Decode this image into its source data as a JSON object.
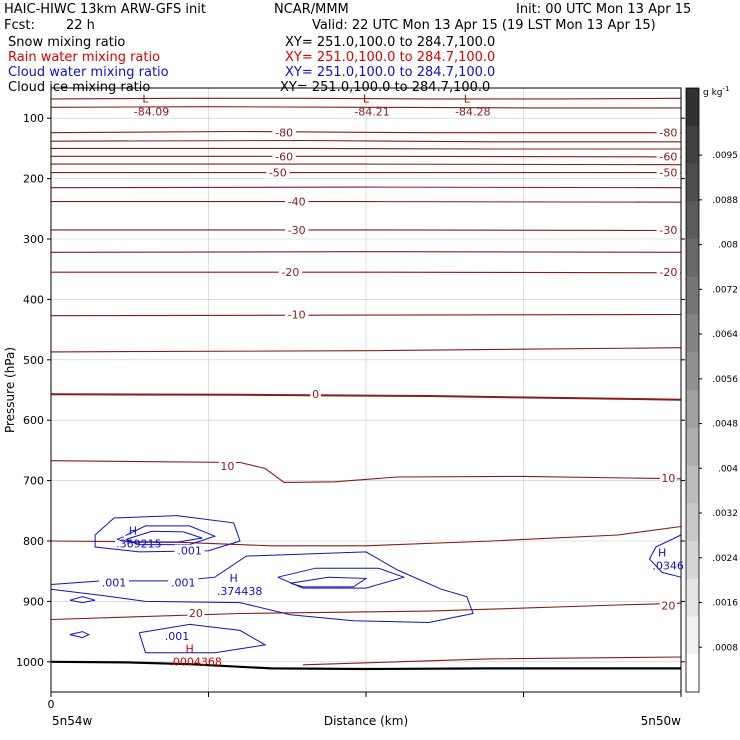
{
  "header": {
    "model": "HAIC-HIWC 13km ARW-GFS init",
    "org": "NCAR/MMM",
    "init": "Init: 00 UTC Mon 13 Apr 15",
    "fcst_label": "Fcst:",
    "fcst_value": "22 h",
    "valid": "Valid: 22 UTC Mon 13 Apr 15 (19 LST Mon 13 Apr 15)",
    "xy": "XY= 251.0,100.0 to 284.7,100.0"
  },
  "fields": [
    {
      "name": "Snow mixing ratio",
      "color": "#000000"
    },
    {
      "name": "Rain water mixing ratio",
      "color": "#ff0000"
    },
    {
      "name": "Cloud water mixing ratio",
      "color": "#0000cc"
    },
    {
      "name": "Cloud ice mixing ratio",
      "color": "#000000"
    }
  ],
  "colors": {
    "temperature": "#8b1a1a",
    "cloud_water": "#1010cc",
    "rain": "#dd0000",
    "surface": "#000000"
  },
  "chart_data": {
    "type": "contour",
    "xlabel": "Distance (km)",
    "ylabel": "Pressure (hPa)",
    "x_tick_labels": [
      "0"
    ],
    "x_end_labels": [
      "5n54w",
      "5n50w"
    ],
    "y_ticks": [
      100,
      200,
      300,
      400,
      500,
      600,
      700,
      800,
      900,
      1000
    ],
    "ylim": [
      1050,
      50
    ],
    "y_scale": "linear",
    "colorbar": {
      "unit": "g kg",
      "unit_exp": "-1",
      "ticks": [
        ".0095",
        ".0088",
        ".008",
        ".0072",
        ".0064",
        ".0056",
        ".0048",
        ".004",
        ".0032",
        ".0024",
        ".0016",
        ".0008"
      ]
    },
    "temperature_labels": [
      {
        "text": "-80",
        "x": 0.37,
        "p": 124
      },
      {
        "text": "-80",
        "x": 0.98,
        "p": 124
      },
      {
        "text": "-60",
        "x": 0.37,
        "p": 163
      },
      {
        "text": "-60",
        "x": 0.98,
        "p": 163
      },
      {
        "text": "-50",
        "x": 0.36,
        "p": 190
      },
      {
        "text": "-50",
        "x": 0.98,
        "p": 190
      },
      {
        "text": "-40",
        "x": 0.39,
        "p": 238
      },
      {
        "text": "-30",
        "x": 0.39,
        "p": 285
      },
      {
        "text": "-30",
        "x": 0.98,
        "p": 285
      },
      {
        "text": "-20",
        "x": 0.38,
        "p": 355
      },
      {
        "text": "-20",
        "x": 0.98,
        "p": 355
      },
      {
        "text": "-10",
        "x": 0.39,
        "p": 425
      },
      {
        "text": "0",
        "x": 0.42,
        "p": 557
      },
      {
        "text": "10",
        "x": 0.28,
        "p": 676
      },
      {
        "text": "10",
        "x": 0.98,
        "p": 696
      },
      {
        "text": "20",
        "x": 0.23,
        "p": 919
      },
      {
        "text": "20",
        "x": 0.98,
        "p": 907
      }
    ],
    "extrema": [
      {
        "symbol": "L",
        "value": "-84.09",
        "x": 0.15,
        "p": 74,
        "color": "#8b1a1a"
      },
      {
        "symbol": "L",
        "value": "-84.21",
        "x": 0.5,
        "p": 74,
        "color": "#8b1a1a"
      },
      {
        "symbol": "L",
        "value": "-84.28",
        "x": 0.66,
        "p": 74,
        "color": "#8b1a1a"
      },
      {
        "symbol": "H",
        "value": ".369215",
        "x": 0.13,
        "p": 789,
        "color": "#1010cc"
      },
      {
        "symbol": "H",
        "value": ".374438",
        "x": 0.29,
        "p": 868,
        "color": "#1010cc"
      },
      {
        "symbol": "H",
        "value": ".0346",
        "x": 0.97,
        "p": 826,
        "color": "#1010cc"
      },
      {
        "symbol": "H",
        "value": ".0004368",
        "x": 0.22,
        "p": 985,
        "color": "#dd0000"
      }
    ],
    "cloud_labels": [
      {
        "text": ".001",
        "x": 0.22,
        "p": 816
      },
      {
        "text": ".001",
        "x": 0.1,
        "p": 869
      },
      {
        "text": ".001",
        "x": 0.21,
        "p": 869
      },
      {
        "text": ".001",
        "x": 0.2,
        "p": 957
      },
      {
        "text": "<",
        "x": 0.11,
        "p": 796
      }
    ],
    "isotherms": [
      {
        "label": "-84",
        "pts": [
          [
            0,
            68
          ],
          [
            0.2,
            67
          ],
          [
            0.4,
            67
          ],
          [
            0.6,
            68
          ],
          [
            0.8,
            68
          ],
          [
            1,
            67
          ]
        ]
      },
      {
        "label": "-85",
        "pts": [
          [
            0,
            82
          ],
          [
            0.25,
            81
          ],
          [
            0.5,
            82
          ],
          [
            0.75,
            83
          ],
          [
            1,
            83
          ]
        ]
      },
      {
        "label": "-80",
        "pts": [
          [
            0,
            124
          ],
          [
            0.3,
            122
          ],
          [
            0.6,
            124
          ],
          [
            1,
            124
          ]
        ]
      },
      {
        "label": "-75",
        "pts": [
          [
            0,
            138
          ],
          [
            0.4,
            137
          ],
          [
            0.7,
            139
          ],
          [
            1,
            139
          ]
        ]
      },
      {
        "label": "-70",
        "pts": [
          [
            0,
            150
          ],
          [
            0.4,
            150
          ],
          [
            0.7,
            151
          ],
          [
            1,
            151
          ]
        ]
      },
      {
        "label": "-60",
        "pts": [
          [
            0,
            163
          ],
          [
            0.5,
            163
          ],
          [
            1,
            164
          ]
        ]
      },
      {
        "label": "-55",
        "pts": [
          [
            0,
            176
          ],
          [
            0.5,
            176
          ],
          [
            1,
            177
          ]
        ]
      },
      {
        "label": "-50",
        "pts": [
          [
            0,
            190
          ],
          [
            0.5,
            190
          ],
          [
            1,
            190
          ]
        ]
      },
      {
        "label": "-45",
        "pts": [
          [
            0,
            215
          ],
          [
            0.5,
            214
          ],
          [
            1,
            215
          ]
        ]
      },
      {
        "label": "-40",
        "pts": [
          [
            0,
            238
          ],
          [
            0.5,
            238
          ],
          [
            1,
            239
          ]
        ]
      },
      {
        "label": "-30",
        "pts": [
          [
            0,
            285
          ],
          [
            0.5,
            285
          ],
          [
            1,
            286
          ]
        ]
      },
      {
        "label": "-25",
        "pts": [
          [
            0,
            322
          ],
          [
            0.5,
            321
          ],
          [
            1,
            322
          ]
        ]
      },
      {
        "label": "-20",
        "pts": [
          [
            0,
            355
          ],
          [
            0.5,
            355
          ],
          [
            1,
            356
          ]
        ]
      },
      {
        "label": "-10",
        "pts": [
          [
            0,
            427
          ],
          [
            0.5,
            426
          ],
          [
            1,
            425
          ]
        ]
      },
      {
        "label": "-5",
        "pts": [
          [
            0,
            487
          ],
          [
            0.5,
            485
          ],
          [
            1,
            480
          ]
        ]
      },
      {
        "label": "0",
        "pts": [
          [
            0,
            557
          ],
          [
            0.3,
            558
          ],
          [
            0.6,
            560
          ],
          [
            0.8,
            563
          ],
          [
            1,
            566
          ]
        ]
      },
      {
        "label": "10",
        "pts": [
          [
            0,
            667
          ],
          [
            0.3,
            670
          ],
          [
            0.34,
            680
          ],
          [
            0.37,
            703
          ],
          [
            0.45,
            702
          ],
          [
            0.55,
            694
          ],
          [
            0.75,
            693
          ],
          [
            1,
            697
          ]
        ]
      },
      {
        "label": "15",
        "pts": [
          [
            0,
            800
          ],
          [
            0.2,
            802
          ],
          [
            0.35,
            808
          ],
          [
            0.5,
            808
          ],
          [
            0.7,
            800
          ],
          [
            0.9,
            790
          ],
          [
            1,
            776
          ]
        ]
      },
      {
        "label": "20",
        "pts": [
          [
            0,
            930
          ],
          [
            0.3,
            920
          ],
          [
            0.6,
            916
          ],
          [
            0.9,
            906
          ],
          [
            1,
            903
          ]
        ]
      },
      {
        "label": "25",
        "pts": [
          [
            0.4,
            1005
          ],
          [
            0.7,
            995
          ],
          [
            1,
            992
          ]
        ]
      }
    ],
    "cloud_water_contours": [
      {
        "level": ".001",
        "pts": [
          [
            0.07,
            790
          ],
          [
            0.1,
            762
          ],
          [
            0.2,
            758
          ],
          [
            0.29,
            770
          ],
          [
            0.3,
            800
          ],
          [
            0.25,
            816
          ],
          [
            0.14,
            818
          ],
          [
            0.07,
            810
          ],
          [
            0.07,
            790
          ]
        ]
      },
      {
        "level": ".01",
        "pts": [
          [
            0.11,
            795
          ],
          [
            0.15,
            775
          ],
          [
            0.22,
            775
          ],
          [
            0.26,
            792
          ],
          [
            0.22,
            806
          ],
          [
            0.14,
            806
          ],
          [
            0.11,
            795
          ]
        ]
      },
      {
        "level": ".1",
        "pts": [
          [
            0.12,
            797
          ],
          [
            0.16,
            784
          ],
          [
            0.21,
            785
          ],
          [
            0.24,
            795
          ],
          [
            0.2,
            802
          ],
          [
            0.13,
            802
          ],
          [
            0.12,
            797
          ]
        ]
      },
      {
        "level": ".001",
        "pts": [
          [
            0,
            872
          ],
          [
            0.08,
            866
          ],
          [
            0.2,
            866
          ],
          [
            0.26,
            860
          ],
          [
            0.31,
            825
          ],
          [
            0.5,
            818
          ],
          [
            0.55,
            848
          ],
          [
            0.62,
            880
          ],
          [
            0.66,
            892
          ],
          [
            0.67,
            920
          ],
          [
            0.6,
            935
          ],
          [
            0.48,
            932
          ],
          [
            0.38,
            922
          ],
          [
            0.3,
            902
          ],
          [
            0.15,
            900
          ],
          [
            0.08,
            890
          ],
          [
            0,
            880
          ]
        ]
      },
      {
        "level": ".01",
        "pts": [
          [
            0.36,
            860
          ],
          [
            0.42,
            845
          ],
          [
            0.52,
            845
          ],
          [
            0.56,
            860
          ],
          [
            0.5,
            878
          ],
          [
            0.4,
            878
          ],
          [
            0.36,
            860
          ]
        ]
      },
      {
        "level": ".1",
        "pts": [
          [
            0.38,
            870
          ],
          [
            0.44,
            860
          ],
          [
            0.5,
            862
          ],
          [
            0.48,
            876
          ],
          [
            0.4,
            876
          ],
          [
            0.38,
            870
          ]
        ]
      },
      {
        "level": ".001",
        "pts": [
          [
            0.14,
            952
          ],
          [
            0.22,
            938
          ],
          [
            0.3,
            948
          ],
          [
            0.34,
            972
          ],
          [
            0.26,
            985
          ],
          [
            0.15,
            985
          ],
          [
            0.14,
            952
          ]
        ]
      },
      {
        "level": ".001",
        "pts": [
          [
            0.03,
            898
          ],
          [
            0.05,
            892
          ],
          [
            0.07,
            898
          ],
          [
            0.05,
            902
          ],
          [
            0.03,
            898
          ]
        ]
      },
      {
        "level": ".001",
        "pts": [
          [
            0.03,
            955
          ],
          [
            0.05,
            950
          ],
          [
            0.06,
            955
          ],
          [
            0.05,
            960
          ],
          [
            0.03,
            955
          ]
        ]
      },
      {
        "level": ".001",
        "pts": [
          [
            1,
            790
          ],
          [
            0.96,
            810
          ],
          [
            0.95,
            830
          ],
          [
            0.97,
            852
          ],
          [
            1,
            860
          ]
        ]
      }
    ],
    "surface": [
      [
        0,
        1000
      ],
      [
        0.12,
        1001
      ],
      [
        0.22,
        1004
      ],
      [
        0.35,
        1011
      ],
      [
        0.5,
        1012
      ],
      [
        0.7,
        1011
      ],
      [
        1,
        1011
      ]
    ]
  }
}
